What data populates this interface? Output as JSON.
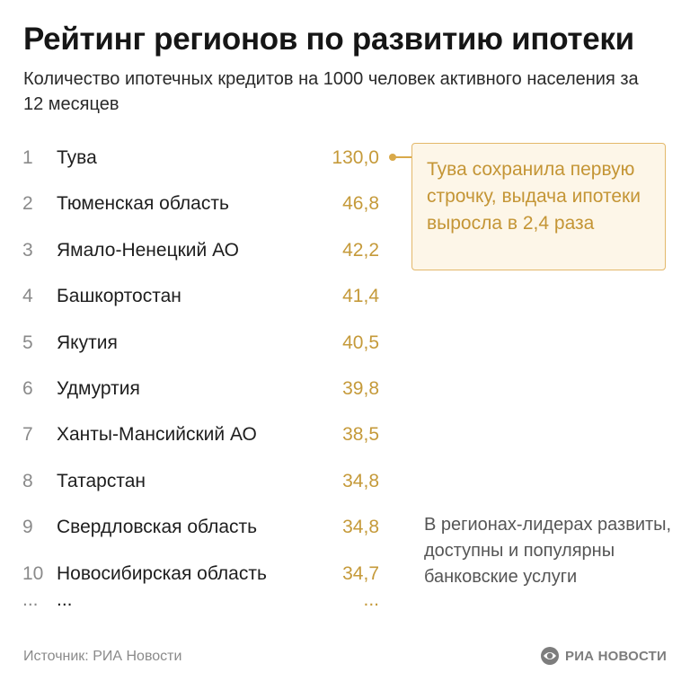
{
  "title": "Рейтинг регионов по развитию ипотеки",
  "subtitle": "Количество ипотечных кредитов на 1000 человек активного населения за 12 месяцев",
  "callout": "Тува сохранила первую строчку, выдача ипотеки выросла в 2,4 раза",
  "side_note": "В регионах-лидерах развиты, доступны и популярны банковские услуги",
  "ellipsis": "...",
  "source": "Источник: РИА Новости",
  "logo_text": "РИА НОВОСТИ",
  "colors": {
    "value": "#c59a3a",
    "callout_border": "#e3b86a",
    "callout_bg": "#fdf6e8",
    "rank": "#8a8a8a"
  },
  "chart_data": {
    "type": "table",
    "columns": [
      "rank",
      "region",
      "value"
    ],
    "rows": [
      {
        "rank": "1",
        "region": "Тува",
        "value": "130,0"
      },
      {
        "rank": "2",
        "region": "Тюменская область",
        "value": "46,8"
      },
      {
        "rank": "3",
        "region": "Ямало-Ненецкий АО",
        "value": "42,2"
      },
      {
        "rank": "4",
        "region": "Башкортостан",
        "value": "41,4"
      },
      {
        "rank": "5",
        "region": "Якутия",
        "value": "40,5"
      },
      {
        "rank": "6",
        "region": "Удмуртия",
        "value": "39,8"
      },
      {
        "rank": "7",
        "region": "Ханты-Мансийский АО",
        "value": "38,5"
      },
      {
        "rank": "8",
        "region": "Татарстан",
        "value": "34,8"
      },
      {
        "rank": "9",
        "region": "Свердловская область",
        "value": "34,8"
      },
      {
        "rank": "10",
        "region": "Новосибирская область",
        "value": "34,7"
      }
    ]
  }
}
